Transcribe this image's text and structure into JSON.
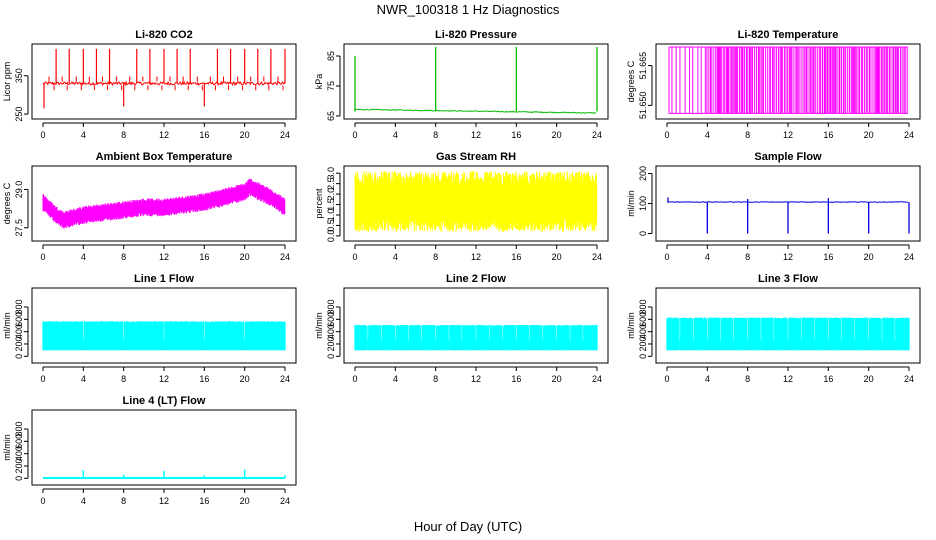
{
  "figure": {
    "title": "NWR_100318  1 Hz Diagnostics",
    "xlabel": "Hour of Day (UTC)"
  },
  "chart_data": [
    {
      "type": "line",
      "title": "Li-820 CO2",
      "ylabel": "Licor ppm",
      "xlim": [
        0,
        24
      ],
      "ylim": [
        245,
        425
      ],
      "x_ticks": [
        0,
        4,
        8,
        12,
        16,
        20,
        24
      ],
      "y_ticks": [
        250,
        350
      ],
      "color": "#ff0000",
      "series": [
        {
          "baseline": 330,
          "spikes": [
            {
              "x": 0.1,
              "y": 265
            },
            {
              "x": 1.3,
              "y": 420
            },
            {
              "x": 2.6,
              "y": 420
            },
            {
              "x": 4.0,
              "y": 420
            },
            {
              "x": 5.3,
              "y": 420
            },
            {
              "x": 6.6,
              "y": 420
            },
            {
              "x": 8.0,
              "y": 270
            },
            {
              "x": 9.3,
              "y": 420
            },
            {
              "x": 10.6,
              "y": 420
            },
            {
              "x": 12.0,
              "y": 420
            },
            {
              "x": 13.3,
              "y": 420
            },
            {
              "x": 14.6,
              "y": 420
            },
            {
              "x": 16.0,
              "y": 270
            },
            {
              "x": 17.3,
              "y": 420
            },
            {
              "x": 18.6,
              "y": 420
            },
            {
              "x": 20.0,
              "y": 420
            },
            {
              "x": 21.3,
              "y": 420
            },
            {
              "x": 22.6,
              "y": 420
            },
            {
              "x": 24.0,
              "y": 420
            }
          ]
        }
      ]
    },
    {
      "type": "line",
      "title": "Li-820 Pressure",
      "ylabel": "kPa",
      "xlim": [
        0,
        24
      ],
      "ylim": [
        65,
        88
      ],
      "x_ticks": [
        0,
        4,
        8,
        12,
        16,
        20,
        24
      ],
      "y_ticks": [
        65,
        75,
        85
      ],
      "color": "#00bb00",
      "series": [
        {
          "x": [
            0,
            0.2,
            4,
            8,
            12,
            16,
            20,
            24
          ],
          "y": [
            67.5,
            67,
            66.8,
            66.6,
            66.5,
            66.3,
            66.2,
            66.0
          ],
          "spikes": [
            {
              "x": 0.0,
              "y": 85
            },
            {
              "x": 8.0,
              "y": 88
            },
            {
              "x": 16.0,
              "y": 88
            },
            {
              "x": 24.0,
              "y": 88
            }
          ]
        }
      ]
    },
    {
      "type": "line",
      "title": "Li-820 Temperature",
      "ylabel": "degrees C",
      "xlim": [
        0,
        24
      ],
      "ylim": [
        51.646,
        51.672
      ],
      "x_ticks": [
        0,
        4,
        8,
        12,
        16,
        20,
        24
      ],
      "y_ticks": [
        51.65,
        51.665
      ],
      "color": "#ff00ff",
      "series": [
        {
          "min": 51.647,
          "max": 51.672,
          "note_density": "oscillating between two values; sparse before hour 4, dense after"
        }
      ]
    },
    {
      "type": "line",
      "title": "Ambient Box Temperature",
      "ylabel": "degrees C",
      "xlim": [
        0,
        24
      ],
      "ylim": [
        27.1,
        29.8
      ],
      "x_ticks": [
        0,
        4,
        8,
        12,
        16,
        20,
        24
      ],
      "y_ticks": [
        27.5,
        29.0
      ],
      "color": "#ff00ff",
      "series": [
        {
          "x": [
            0,
            1,
            2,
            3,
            4,
            6,
            8,
            10,
            12,
            14,
            16,
            18,
            20,
            20.5,
            21,
            22,
            23,
            24
          ],
          "y_mid": [
            28.5,
            28.1,
            27.8,
            27.9,
            28.0,
            28.1,
            28.2,
            28.3,
            28.3,
            28.4,
            28.5,
            28.7,
            28.9,
            29.1,
            29.0,
            28.8,
            28.6,
            28.3
          ],
          "band": 0.4
        }
      ]
    },
    {
      "type": "line",
      "title": "Gas Stream RH",
      "ylabel": "percent",
      "xlim": [
        0,
        24
      ],
      "ylim": [
        -0.1,
        3.2
      ],
      "x_ticks": [
        0,
        4,
        8,
        12,
        16,
        20,
        24
      ],
      "y_ticks": [
        0.0,
        0.5,
        1.0,
        1.5,
        2.0,
        2.5,
        3.0
      ],
      "color": "#ffff00",
      "series": [
        {
          "center": 1.6,
          "min": 0.2,
          "max": 3.1
        }
      ]
    },
    {
      "type": "line",
      "title": "Sample Flow",
      "ylabel": "ml/min",
      "xlim": [
        0,
        24
      ],
      "ylim": [
        -15,
        215
      ],
      "x_ticks": [
        0,
        4,
        8,
        12,
        16,
        20,
        24
      ],
      "y_ticks": [
        0,
        100,
        200
      ],
      "color": "#0000dd",
      "series": [
        {
          "baseline": 105,
          "dips": [
            4.0,
            8.0,
            12.0,
            16.0,
            20.0,
            24.0
          ],
          "dip_y": 0,
          "spikes": [
            {
              "x": 0.1,
              "y": 120
            },
            {
              "x": 8.0,
              "y": 115
            },
            {
              "x": 16.0,
              "y": 118
            }
          ]
        }
      ]
    },
    {
      "type": "line",
      "title": "Line 1 Flow",
      "ylabel": "ml/min",
      "xlim": [
        0,
        24
      ],
      "ylim": [
        -60,
        1060
      ],
      "x_ticks": [
        0,
        4,
        8,
        12,
        16,
        20,
        24
      ],
      "y_ticks": [
        0,
        200,
        400,
        600,
        800
      ],
      "color": "#00ffff",
      "series": [
        {
          "low": 100,
          "high": 560,
          "gaps": [
            4.0,
            8.0,
            12.0,
            16.0,
            20.0
          ]
        }
      ]
    },
    {
      "type": "line",
      "title": "Line 2 Flow",
      "ylabel": "ml/min",
      "xlim": [
        0,
        24
      ],
      "ylim": [
        -60,
        1060
      ],
      "x_ticks": [
        0,
        4,
        8,
        12,
        16,
        20,
        24
      ],
      "y_ticks": [
        0,
        200,
        400,
        600,
        800
      ],
      "color": "#00ffff",
      "series": [
        {
          "low": 100,
          "high": 500,
          "gaps": [
            1.3,
            2.6,
            4.0,
            5.3,
            6.6,
            8.0,
            9.3,
            10.6,
            12.0,
            13.3,
            14.6,
            16.0,
            17.3,
            18.6,
            20.0,
            21.3,
            22.6
          ]
        }
      ]
    },
    {
      "type": "line",
      "title": "Line 3 Flow",
      "ylabel": "ml/min",
      "xlim": [
        0,
        24
      ],
      "ylim": [
        -60,
        1060
      ],
      "x_ticks": [
        0,
        4,
        8,
        12,
        16,
        20,
        24
      ],
      "y_ticks": [
        0,
        200,
        400,
        600,
        800
      ],
      "color": "#00ffff",
      "series": [
        {
          "low": 100,
          "high": 620,
          "gaps": [
            1.3,
            2.6,
            4.0,
            5.3,
            6.6,
            8.0,
            9.3,
            10.6,
            12.0,
            13.3,
            14.6,
            16.0,
            17.3,
            18.6,
            20.0,
            21.3,
            22.6
          ]
        }
      ]
    },
    {
      "type": "line",
      "title": "Line 4 (LT) Flow",
      "ylabel": "ml/min",
      "xlim": [
        0,
        24
      ],
      "ylim": [
        -60,
        1060
      ],
      "x_ticks": [
        0,
        4,
        8,
        12,
        16,
        20,
        24
      ],
      "y_ticks": [
        0,
        200,
        400,
        600,
        800
      ],
      "color": "#00ffff",
      "series": [
        {
          "baseline": 5,
          "spikes": [
            {
              "x": 4.0,
              "y": 130
            },
            {
              "x": 8.0,
              "y": 60
            },
            {
              "x": 12.0,
              "y": 120
            },
            {
              "x": 16.0,
              "y": 50
            },
            {
              "x": 20.0,
              "y": 140
            },
            {
              "x": 24.0,
              "y": 50
            }
          ]
        }
      ]
    }
  ]
}
